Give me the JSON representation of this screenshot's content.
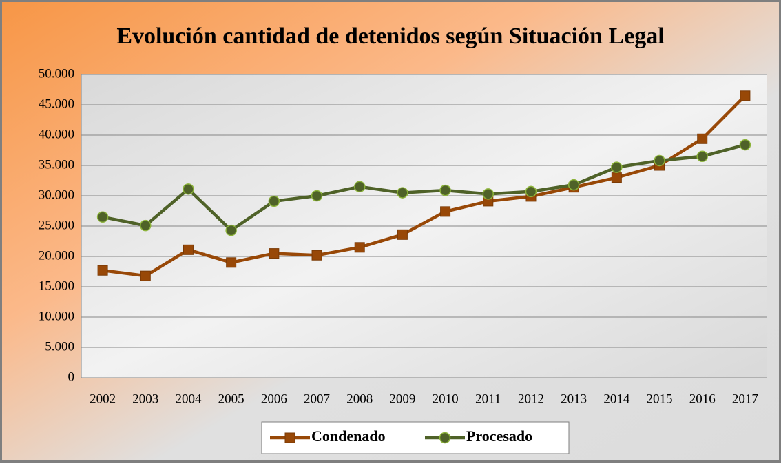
{
  "chart_data": {
    "type": "line",
    "title": "Evolución cantidad de detenidos según Situación Legal",
    "categories": [
      "2002",
      "2003",
      "2004",
      "2005",
      "2006",
      "2007",
      "2008",
      "2009",
      "2010",
      "2011",
      "2012",
      "2013",
      "2014",
      "2015",
      "2016",
      "2017"
    ],
    "series": [
      {
        "name": "Condenado",
        "color": "#984807",
        "marker": "square",
        "values": [
          17700,
          16800,
          21100,
          19000,
          20500,
          20200,
          21500,
          23600,
          27400,
          29100,
          29900,
          31400,
          33000,
          35000,
          39400,
          46500
        ]
      },
      {
        "name": "Procesado",
        "color": "#4f6228",
        "marker": "circle",
        "values": [
          26500,
          25100,
          31100,
          24300,
          29100,
          30000,
          31500,
          30500,
          30900,
          30300,
          30700,
          31800,
          34700,
          35800,
          36500,
          38400
        ]
      }
    ],
    "ylim": [
      0,
      50000
    ],
    "yticks": [
      0,
      {
        "value": 5000,
        "label": "5.000"
      },
      {
        "value": 10000,
        "label": "10.000"
      },
      {
        "value": 15000,
        "label": "15.000"
      },
      {
        "value": 20000,
        "label": "20.000"
      },
      {
        "value": 25000,
        "label": "25.000"
      },
      {
        "value": 30000,
        "label": "30.000"
      },
      {
        "value": 35000,
        "label": "35.000"
      },
      {
        "value": 40000,
        "label": "40.000"
      },
      {
        "value": 45000,
        "label": "45.000"
      },
      {
        "value": 50000,
        "label": "50.000"
      }
    ],
    "grid": true,
    "legend": "bottom"
  }
}
